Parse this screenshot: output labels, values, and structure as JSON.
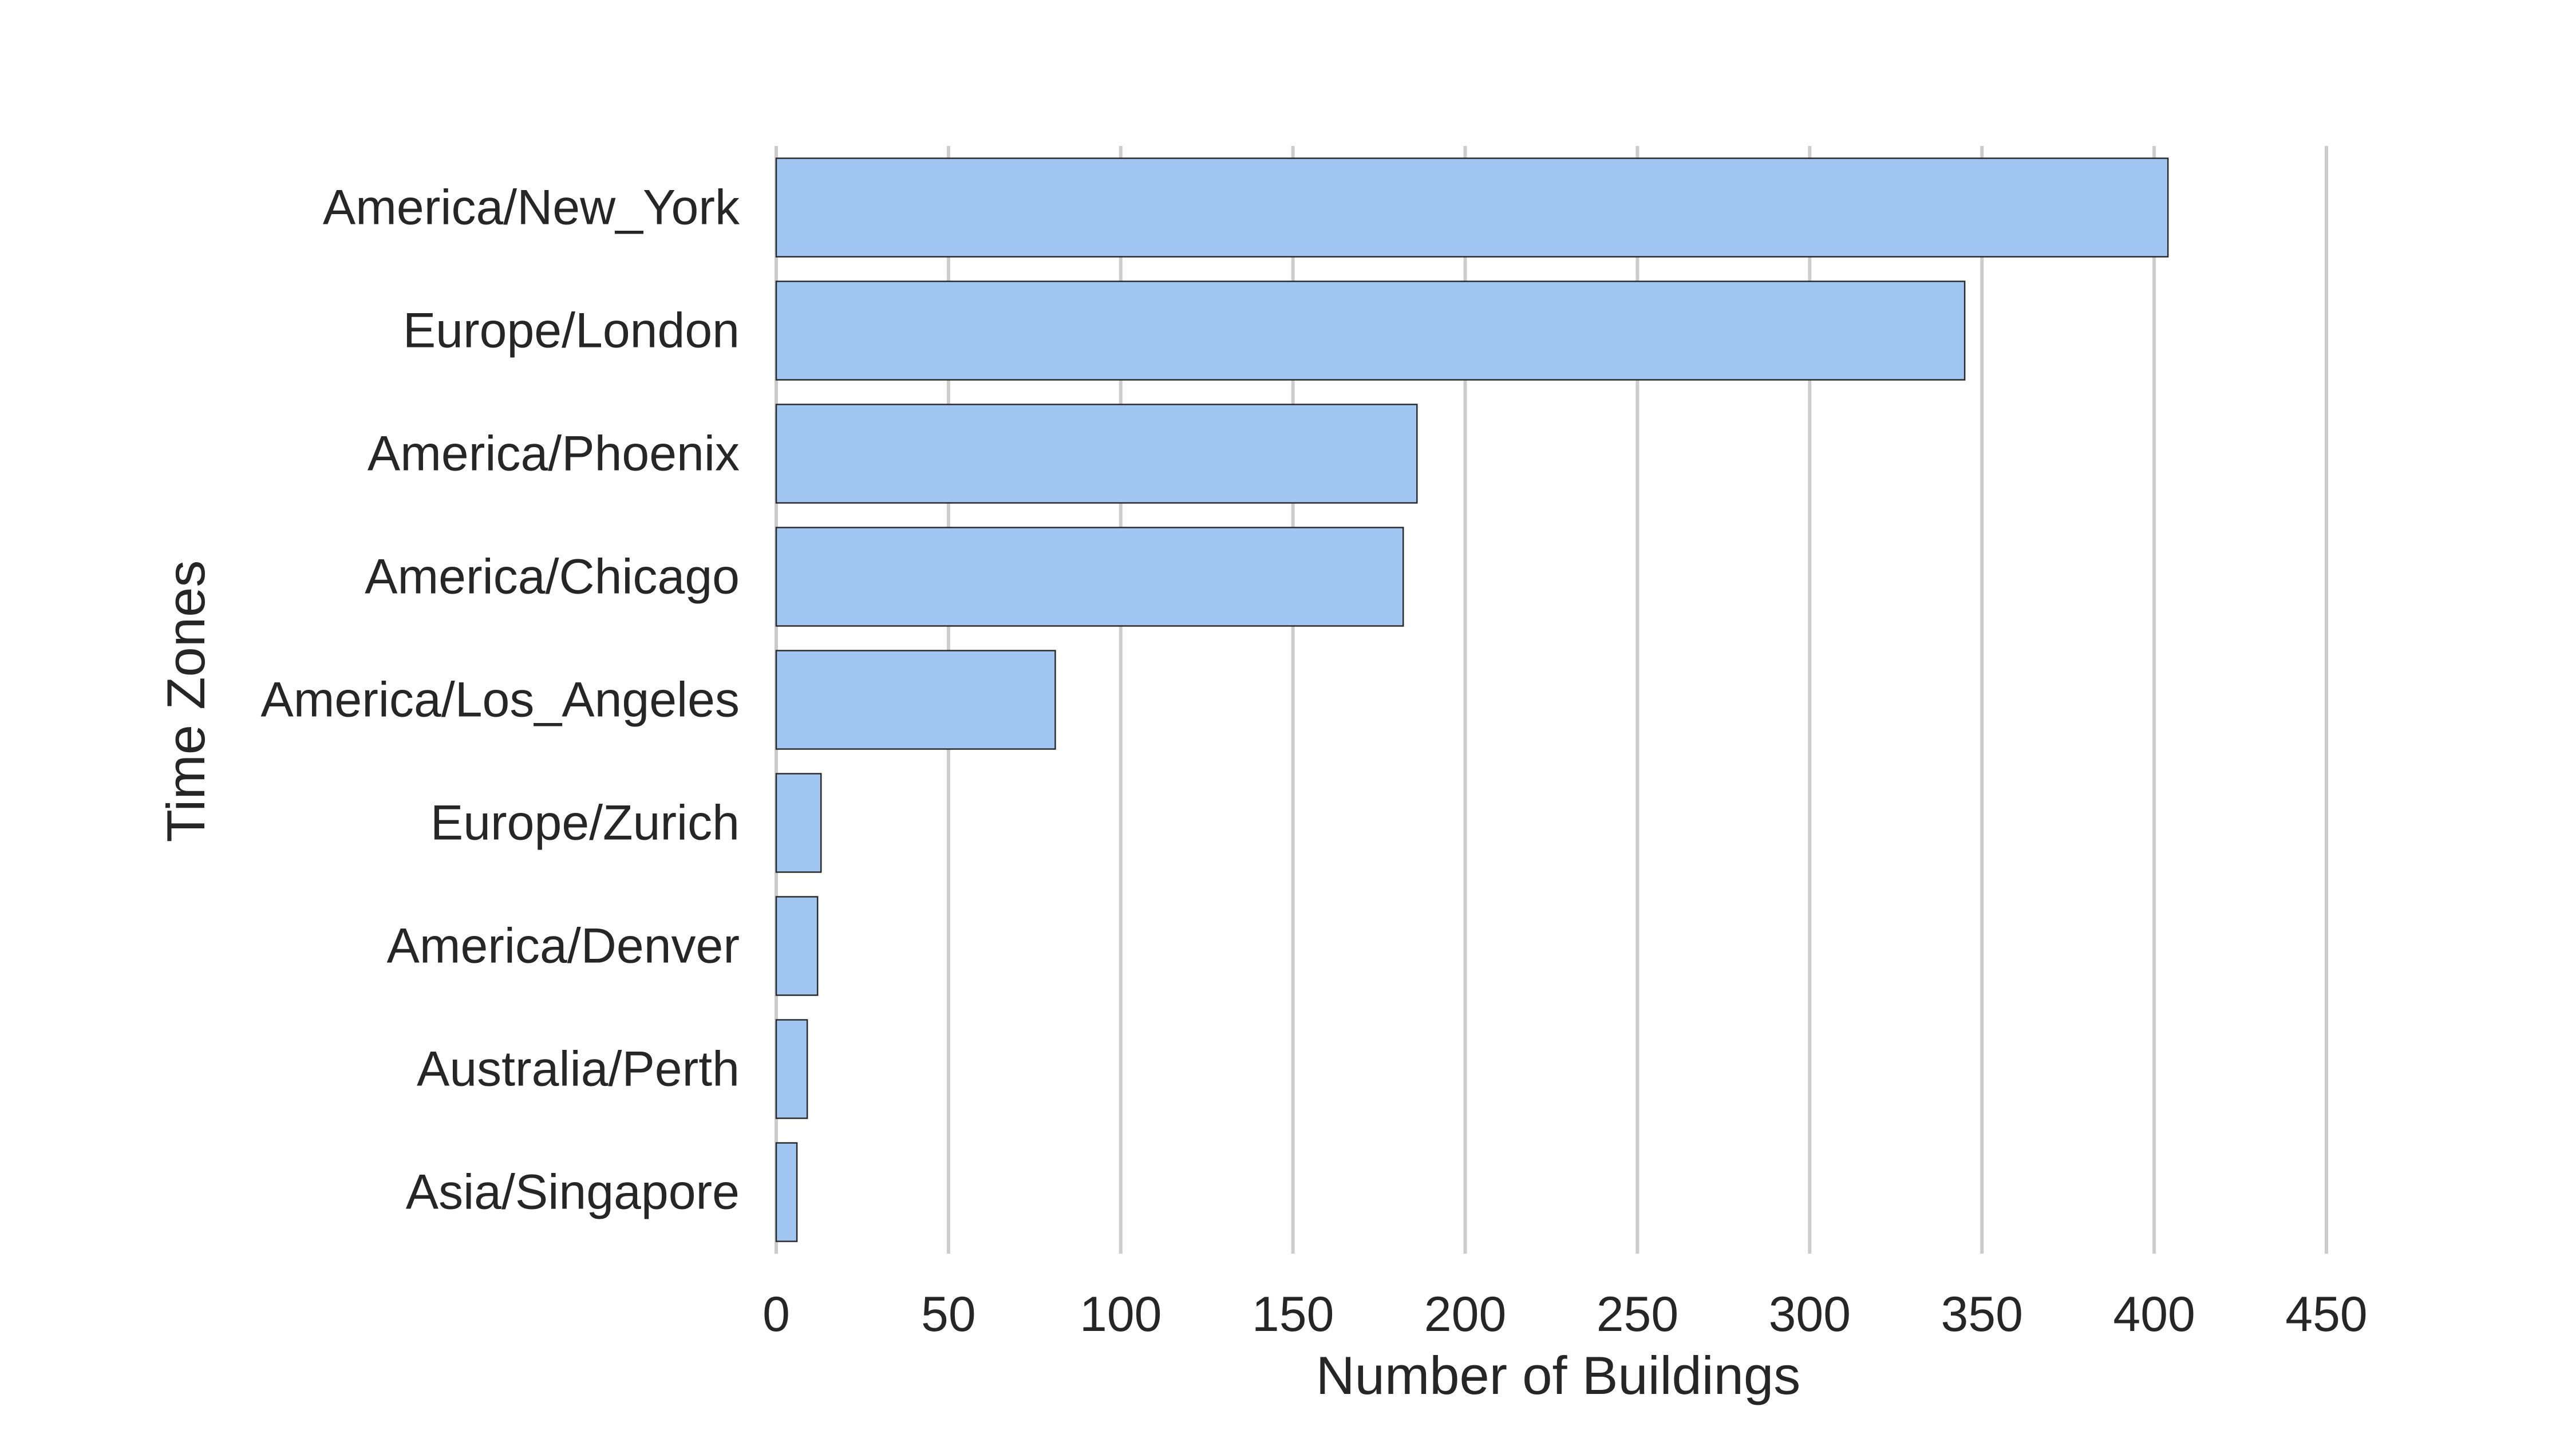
{
  "chart_data": {
    "type": "bar",
    "orientation": "horizontal",
    "categories": [
      "America/New_York",
      "Europe/London",
      "America/Phoenix",
      "America/Chicago",
      "America/Los_Angeles",
      "Europe/Zurich",
      "America/Denver",
      "Australia/Perth",
      "Asia/Singapore"
    ],
    "values": [
      404,
      345,
      186,
      182,
      81,
      13,
      12,
      9,
      6
    ],
    "xlabel": "Number of Buildings",
    "ylabel": "Time Zones",
    "xlim": [
      0,
      450
    ],
    "xticks": [
      0,
      50,
      100,
      150,
      200,
      250,
      300,
      350,
      400,
      450
    ],
    "grid": "vertical",
    "bar_color": "#a1c6f2",
    "edge_color": "#2b2b2b"
  }
}
